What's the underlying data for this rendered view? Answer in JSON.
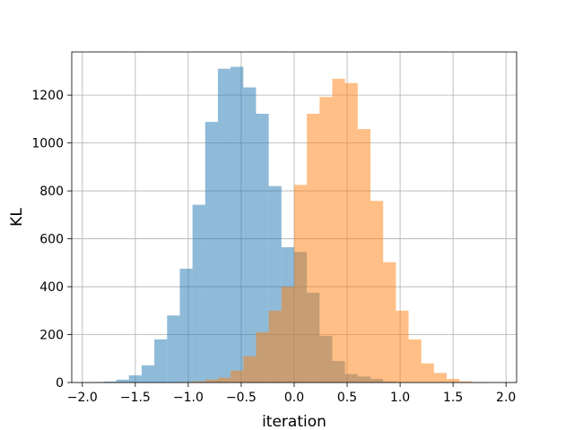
{
  "chart_data": {
    "type": "bar",
    "xlabel": "iteration",
    "ylabel": "KL",
    "xlim": [
      -2.1,
      2.1
    ],
    "ylim": [
      0,
      1380
    ],
    "grid": true,
    "xticks": [
      -2.0,
      -1.5,
      -1.0,
      -0.5,
      0.0,
      0.5,
      1.0,
      1.5,
      2.0
    ],
    "xtick_labels": [
      "−2.0",
      "−1.5",
      "−1.0",
      "−0.5",
      "0.0",
      "0.5",
      "1.0",
      "1.5",
      "2.0"
    ],
    "yticks": [
      0,
      200,
      400,
      600,
      800,
      1000,
      1200
    ],
    "ytick_labels": [
      "0",
      "200",
      "400",
      "600",
      "800",
      "1000",
      "1200"
    ],
    "series": [
      {
        "color": "#1f77b4",
        "opacity": 0.5,
        "bin_edges": [
          -1.92,
          -1.8,
          -1.68,
          -1.56,
          -1.44,
          -1.32,
          -1.2,
          -1.08,
          -0.96,
          -0.84,
          -0.72,
          -0.6,
          -0.48,
          -0.36,
          -0.24,
          -0.12,
          0.0,
          0.12,
          0.24,
          0.36,
          0.48,
          0.6,
          0.72,
          0.84,
          0.96
        ],
        "counts": [
          2,
          4,
          12,
          30,
          72,
          180,
          280,
          475,
          742,
          1088,
          1310,
          1318,
          1232,
          1122,
          820,
          565,
          545,
          375,
          195,
          90,
          35,
          25,
          15,
          4
        ]
      },
      {
        "color": "#ff7f0e",
        "opacity": 0.5,
        "bin_edges": [
          -1.08,
          -0.96,
          -0.84,
          -0.72,
          -0.6,
          -0.48,
          -0.36,
          -0.24,
          -0.12,
          0.0,
          0.12,
          0.24,
          0.36,
          0.48,
          0.6,
          0.72,
          0.84,
          0.96,
          1.08,
          1.2,
          1.32,
          1.44,
          1.56,
          1.68,
          1.8
        ],
        "counts": [
          2,
          5,
          12,
          20,
          50,
          110,
          210,
          300,
          400,
          825,
          1122,
          1192,
          1268,
          1250,
          1058,
          758,
          502,
          300,
          180,
          80,
          40,
          15,
          5,
          2
        ]
      }
    ]
  }
}
